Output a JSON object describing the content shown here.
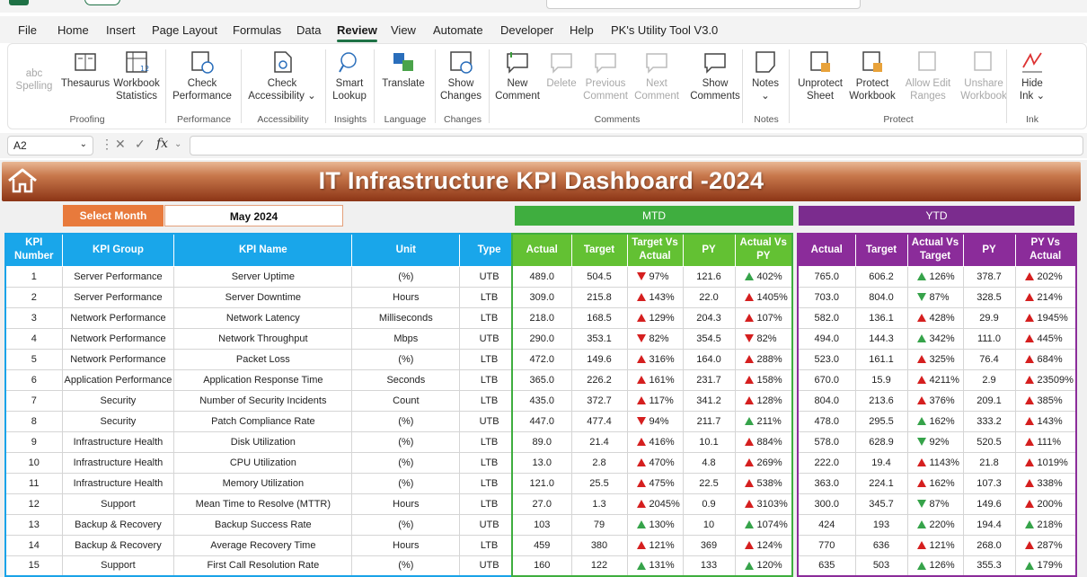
{
  "menu": {
    "tabs": [
      "File",
      "Home",
      "Insert",
      "Page Layout",
      "Formulas",
      "Data",
      "Review",
      "View",
      "Automate",
      "Developer",
      "Help",
      "PK's Utility Tool V3.0"
    ],
    "active": "Review"
  },
  "ribbon": {
    "buttons": [
      {
        "l1": "abc",
        "l2": "Spelling",
        "disabled": true
      },
      {
        "l1": "Thesaurus",
        "l2": ""
      },
      {
        "l1": "Workbook",
        "l2": "Statistics"
      },
      {
        "l1": "Check",
        "l2": "Performance"
      },
      {
        "l1": "Check",
        "l2": "Accessibility ⌄"
      },
      {
        "l1": "Smart",
        "l2": "Lookup"
      },
      {
        "l1": "Translate",
        "l2": ""
      },
      {
        "l1": "Show",
        "l2": "Changes"
      },
      {
        "l1": "New",
        "l2": "Comment"
      },
      {
        "l1": "Delete",
        "l2": "",
        "disabled": true
      },
      {
        "l1": "Previous",
        "l2": "Comment",
        "disabled": true
      },
      {
        "l1": "Next",
        "l2": "Comment",
        "disabled": true
      },
      {
        "l1": "Show",
        "l2": "Comments"
      },
      {
        "l1": "Notes",
        "l2": "⌄"
      },
      {
        "l1": "Unprotect",
        "l2": "Sheet"
      },
      {
        "l1": "Protect",
        "l2": "Workbook"
      },
      {
        "l1": "Allow Edit",
        "l2": "Ranges",
        "disabled": true
      },
      {
        "l1": "Unshare",
        "l2": "Workbook",
        "disabled": true
      },
      {
        "l1": "Hide",
        "l2": "Ink ⌄"
      }
    ],
    "groups": [
      "Proofing",
      "Performance",
      "Accessibility",
      "Insights",
      "Language",
      "Changes",
      "Comments",
      "Notes",
      "Protect",
      "Ink"
    ]
  },
  "formula_bar": {
    "cell_ref": "A2",
    "fx": "fx",
    "value": ""
  },
  "dashboard": {
    "title": "IT Infrastructure KPI Dashboard -2024",
    "select_month_label": "Select Month",
    "month_value": "May 2024",
    "mtd_label": "MTD",
    "ytd_label": "YTD",
    "headers_left": [
      "KPI Number",
      "KPI Group",
      "KPI Name",
      "Unit",
      "Type"
    ],
    "headers_mtd": [
      "Actual",
      "Target",
      "Target Vs Actual",
      "PY",
      "Actual Vs PY"
    ],
    "headers_ytd": [
      "Actual",
      "Target",
      "Actual Vs Target",
      "PY",
      "PY Vs Actual"
    ],
    "rows": [
      {
        "no": "1",
        "group": "Server Performance",
        "name": "Server Uptime",
        "unit": "(%)",
        "type": "UTB",
        "m_act": "489.0",
        "m_tgt": "504.5",
        "m_tva": "97%",
        "m_tva_dir": "down",
        "m_tva_col": "red",
        "m_py": "121.6",
        "m_avp": "402%",
        "m_avp_dir": "up",
        "m_avp_col": "green",
        "y_act": "765.0",
        "y_tgt": "606.2",
        "y_avt": "126%",
        "y_avt_dir": "up",
        "y_avt_col": "green",
        "y_py": "378.7",
        "y_pva": "202%",
        "y_pva_dir": "up",
        "y_pva_col": "red"
      },
      {
        "no": "2",
        "group": "Server Performance",
        "name": "Server Downtime",
        "unit": "Hours",
        "type": "LTB",
        "m_act": "309.0",
        "m_tgt": "215.8",
        "m_tva": "143%",
        "m_tva_dir": "up",
        "m_tva_col": "red",
        "m_py": "22.0",
        "m_avp": "1405%",
        "m_avp_dir": "up",
        "m_avp_col": "red",
        "y_act": "703.0",
        "y_tgt": "804.0",
        "y_avt": "87%",
        "y_avt_dir": "down",
        "y_avt_col": "green",
        "y_py": "328.5",
        "y_pva": "214%",
        "y_pva_dir": "up",
        "y_pva_col": "red"
      },
      {
        "no": "3",
        "group": "Network Performance",
        "name": "Network Latency",
        "unit": "Milliseconds",
        "type": "LTB",
        "m_act": "218.0",
        "m_tgt": "168.5",
        "m_tva": "129%",
        "m_tva_dir": "up",
        "m_tva_col": "red",
        "m_py": "204.3",
        "m_avp": "107%",
        "m_avp_dir": "up",
        "m_avp_col": "red",
        "y_act": "582.0",
        "y_tgt": "136.1",
        "y_avt": "428%",
        "y_avt_dir": "up",
        "y_avt_col": "red",
        "y_py": "29.9",
        "y_pva": "1945%",
        "y_pva_dir": "up",
        "y_pva_col": "red"
      },
      {
        "no": "4",
        "group": "Network Performance",
        "name": "Network Throughput",
        "unit": "Mbps",
        "type": "UTB",
        "m_act": "290.0",
        "m_tgt": "353.1",
        "m_tva": "82%",
        "m_tva_dir": "down",
        "m_tva_col": "red",
        "m_py": "354.5",
        "m_avp": "82%",
        "m_avp_dir": "down",
        "m_avp_col": "red",
        "y_act": "494.0",
        "y_tgt": "144.3",
        "y_avt": "342%",
        "y_avt_dir": "up",
        "y_avt_col": "green",
        "y_py": "111.0",
        "y_pva": "445%",
        "y_pva_dir": "up",
        "y_pva_col": "red"
      },
      {
        "no": "5",
        "group": "Network Performance",
        "name": "Packet Loss",
        "unit": "(%)",
        "type": "LTB",
        "m_act": "472.0",
        "m_tgt": "149.6",
        "m_tva": "316%",
        "m_tva_dir": "up",
        "m_tva_col": "red",
        "m_py": "164.0",
        "m_avp": "288%",
        "m_avp_dir": "up",
        "m_avp_col": "red",
        "y_act": "523.0",
        "y_tgt": "161.1",
        "y_avt": "325%",
        "y_avt_dir": "up",
        "y_avt_col": "red",
        "y_py": "76.4",
        "y_pva": "684%",
        "y_pva_dir": "up",
        "y_pva_col": "red"
      },
      {
        "no": "6",
        "group": "Application Performance",
        "name": "Application Response Time",
        "unit": "Seconds",
        "type": "LTB",
        "m_act": "365.0",
        "m_tgt": "226.2",
        "m_tva": "161%",
        "m_tva_dir": "up",
        "m_tva_col": "red",
        "m_py": "231.7",
        "m_avp": "158%",
        "m_avp_dir": "up",
        "m_avp_col": "red",
        "y_act": "670.0",
        "y_tgt": "15.9",
        "y_avt": "4211%",
        "y_avt_dir": "up",
        "y_avt_col": "red",
        "y_py": "2.9",
        "y_pva": "23509%",
        "y_pva_dir": "up",
        "y_pva_col": "red"
      },
      {
        "no": "7",
        "group": "Security",
        "name": "Number of Security Incidents",
        "unit": "Count",
        "type": "LTB",
        "m_act": "435.0",
        "m_tgt": "372.7",
        "m_tva": "117%",
        "m_tva_dir": "up",
        "m_tva_col": "red",
        "m_py": "341.2",
        "m_avp": "128%",
        "m_avp_dir": "up",
        "m_avp_col": "red",
        "y_act": "804.0",
        "y_tgt": "213.6",
        "y_avt": "376%",
        "y_avt_dir": "up",
        "y_avt_col": "red",
        "y_py": "209.1",
        "y_pva": "385%",
        "y_pva_dir": "up",
        "y_pva_col": "red"
      },
      {
        "no": "8",
        "group": "Security",
        "name": "Patch Compliance Rate",
        "unit": "(%)",
        "type": "UTB",
        "m_act": "447.0",
        "m_tgt": "477.4",
        "m_tva": "94%",
        "m_tva_dir": "down",
        "m_tva_col": "red",
        "m_py": "211.7",
        "m_avp": "211%",
        "m_avp_dir": "up",
        "m_avp_col": "green",
        "y_act": "478.0",
        "y_tgt": "295.5",
        "y_avt": "162%",
        "y_avt_dir": "up",
        "y_avt_col": "green",
        "y_py": "333.2",
        "y_pva": "143%",
        "y_pva_dir": "up",
        "y_pva_col": "red"
      },
      {
        "no": "9",
        "group": "Infrastructure Health",
        "name": "Disk Utilization",
        "unit": "(%)",
        "type": "LTB",
        "m_act": "89.0",
        "m_tgt": "21.4",
        "m_tva": "416%",
        "m_tva_dir": "up",
        "m_tva_col": "red",
        "m_py": "10.1",
        "m_avp": "884%",
        "m_avp_dir": "up",
        "m_avp_col": "red",
        "y_act": "578.0",
        "y_tgt": "628.9",
        "y_avt": "92%",
        "y_avt_dir": "down",
        "y_avt_col": "green",
        "y_py": "520.5",
        "y_pva": "111%",
        "y_pva_dir": "up",
        "y_pva_col": "red"
      },
      {
        "no": "10",
        "group": "Infrastructure Health",
        "name": "CPU Utilization",
        "unit": "(%)",
        "type": "LTB",
        "m_act": "13.0",
        "m_tgt": "2.8",
        "m_tva": "470%",
        "m_tva_dir": "up",
        "m_tva_col": "red",
        "m_py": "4.8",
        "m_avp": "269%",
        "m_avp_dir": "up",
        "m_avp_col": "red",
        "y_act": "222.0",
        "y_tgt": "19.4",
        "y_avt": "1143%",
        "y_avt_dir": "up",
        "y_avt_col": "red",
        "y_py": "21.8",
        "y_pva": "1019%",
        "y_pva_dir": "up",
        "y_pva_col": "red"
      },
      {
        "no": "11",
        "group": "Infrastructure Health",
        "name": "Memory Utilization",
        "unit": "(%)",
        "type": "LTB",
        "m_act": "121.0",
        "m_tgt": "25.5",
        "m_tva": "475%",
        "m_tva_dir": "up",
        "m_tva_col": "red",
        "m_py": "22.5",
        "m_avp": "538%",
        "m_avp_dir": "up",
        "m_avp_col": "red",
        "y_act": "363.0",
        "y_tgt": "224.1",
        "y_avt": "162%",
        "y_avt_dir": "up",
        "y_avt_col": "red",
        "y_py": "107.3",
        "y_pva": "338%",
        "y_pva_dir": "up",
        "y_pva_col": "red"
      },
      {
        "no": "12",
        "group": "Support",
        "name": "Mean Time to Resolve (MTTR)",
        "unit": "Hours",
        "type": "LTB",
        "m_act": "27.0",
        "m_tgt": "1.3",
        "m_tva": "2045%",
        "m_tva_dir": "up",
        "m_tva_col": "red",
        "m_py": "0.9",
        "m_avp": "3103%",
        "m_avp_dir": "up",
        "m_avp_col": "red",
        "y_act": "300.0",
        "y_tgt": "345.7",
        "y_avt": "87%",
        "y_avt_dir": "down",
        "y_avt_col": "green",
        "y_py": "149.6",
        "y_pva": "200%",
        "y_pva_dir": "up",
        "y_pva_col": "red"
      },
      {
        "no": "13",
        "group": "Backup & Recovery",
        "name": "Backup Success Rate",
        "unit": "(%)",
        "type": "UTB",
        "m_act": "103",
        "m_tgt": "79",
        "m_tva": "130%",
        "m_tva_dir": "up",
        "m_tva_col": "green",
        "m_py": "10",
        "m_avp": "1074%",
        "m_avp_dir": "up",
        "m_avp_col": "green",
        "y_act": "424",
        "y_tgt": "193",
        "y_avt": "220%",
        "y_avt_dir": "up",
        "y_avt_col": "green",
        "y_py": "194.4",
        "y_pva": "218%",
        "y_pva_dir": "up",
        "y_pva_col": "green"
      },
      {
        "no": "14",
        "group": "Backup & Recovery",
        "name": "Average Recovery Time",
        "unit": "Hours",
        "type": "LTB",
        "m_act": "459",
        "m_tgt": "380",
        "m_tva": "121%",
        "m_tva_dir": "up",
        "m_tva_col": "red",
        "m_py": "369",
        "m_avp": "124%",
        "m_avp_dir": "up",
        "m_avp_col": "red",
        "y_act": "770",
        "y_tgt": "636",
        "y_avt": "121%",
        "y_avt_dir": "up",
        "y_avt_col": "red",
        "y_py": "268.0",
        "y_pva": "287%",
        "y_pva_dir": "up",
        "y_pva_col": "red"
      },
      {
        "no": "15",
        "group": "Support",
        "name": "First Call Resolution Rate",
        "unit": "(%)",
        "type": "UTB",
        "m_act": "160",
        "m_tgt": "122",
        "m_tva": "131%",
        "m_tva_dir": "up",
        "m_tva_col": "green",
        "m_py": "133",
        "m_avp": "120%",
        "m_avp_dir": "up",
        "m_avp_col": "green",
        "y_act": "635",
        "y_tgt": "503",
        "y_avt": "126%",
        "y_avt_dir": "up",
        "y_avt_col": "green",
        "y_py": "355.3",
        "y_pva": "179%",
        "y_pva_dir": "up",
        "y_pva_col": "green"
      }
    ]
  },
  "colors": {
    "excel_green": "#1e7145",
    "banner_dark": "#8c3516",
    "left_header": "#19a6ea",
    "mtd": "#3fae3f",
    "ytd": "#7b2c8e",
    "select_month": "#e87a3c",
    "arrow_red": "#d51f1f",
    "arrow_green": "#36a34a"
  }
}
